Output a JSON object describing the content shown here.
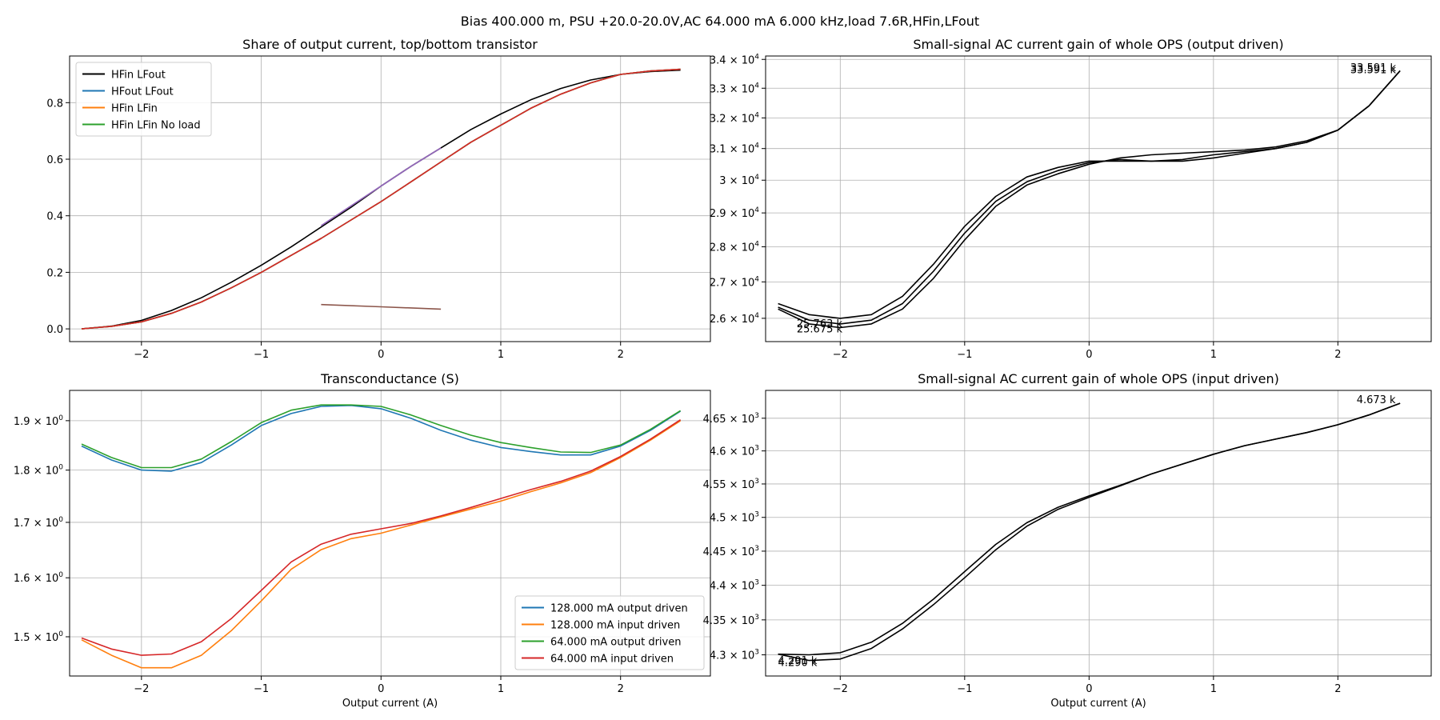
{
  "figure": {
    "suptitle": "Bias 400.000 m, PSU +20.0-20.0V,AC 64.000 mA 6.000 kHz,load 7.6R,HFin,LFout"
  },
  "chart_data": [
    {
      "id": "share",
      "type": "line",
      "title": "Share of output current, top/bottom transistor",
      "xlabel": "",
      "ylabel": "",
      "xlim": [
        -2.6,
        2.75
      ],
      "ylim": [
        -0.045,
        0.965
      ],
      "scale_y": "linear",
      "xticks": [
        -2,
        -1,
        0,
        1,
        2
      ],
      "xtick_labels": [
        "−2",
        "−1",
        "0",
        "1",
        "2"
      ],
      "yticks": [
        0.0,
        0.2,
        0.4,
        0.6,
        0.8
      ],
      "ytick_labels": [
        "0.0",
        "0.2",
        "0.4",
        "0.6",
        "0.8"
      ],
      "grid": true,
      "legend_position": "upper-left",
      "series": [
        {
          "name": "HFin LFout",
          "color": "#000000",
          "x": [
            -2.5,
            -2.25,
            -2,
            -1.75,
            -1.5,
            -1.25,
            -1,
            -0.75,
            -0.5,
            -0.25,
            0,
            0.25,
            0.5,
            0.75,
            1,
            1.25,
            1.5,
            1.75,
            2,
            2.25,
            2.5
          ],
          "y": [
            0.0,
            0.01,
            0.03,
            0.065,
            0.11,
            0.165,
            0.225,
            0.29,
            0.36,
            0.43,
            0.505,
            0.575,
            0.64,
            0.705,
            0.76,
            0.81,
            0.85,
            0.88,
            0.9,
            0.91,
            0.915
          ]
        },
        {
          "name": "HFout LFout",
          "color": "#1f77b4",
          "x": [
            -2.5,
            -2.25,
            -2,
            -1.75,
            -1.5,
            -1.25,
            -1,
            -0.75,
            -0.5,
            -0.25,
            0,
            0.25,
            0.5,
            0.75,
            1,
            1.25,
            1.5,
            1.75,
            2,
            2.25,
            2.5
          ],
          "y": [
            0.0,
            0.009,
            0.025,
            0.055,
            0.095,
            0.145,
            0.2,
            0.26,
            0.32,
            0.385,
            0.45,
            0.52,
            0.59,
            0.66,
            0.72,
            0.78,
            0.83,
            0.87,
            0.9,
            0.912,
            0.918
          ]
        },
        {
          "name": "HFin LFin",
          "color": "#ff7f0e",
          "x": [
            -2.5,
            -2.25,
            -2,
            -1.75,
            -1.5,
            -1.25,
            -1,
            -0.75,
            -0.5,
            -0.25,
            0,
            0.25,
            0.5,
            0.75,
            1,
            1.25,
            1.5,
            1.75,
            2,
            2.25,
            2.5
          ],
          "y": [
            0.0,
            0.009,
            0.025,
            0.055,
            0.095,
            0.145,
            0.2,
            0.26,
            0.32,
            0.385,
            0.45,
            0.52,
            0.59,
            0.66,
            0.72,
            0.78,
            0.83,
            0.87,
            0.9,
            0.912,
            0.918
          ]
        },
        {
          "name": "HFin LFin No load",
          "color": "#2ca02c",
          "x": [
            -2.5,
            -2.25,
            -2,
            -1.75,
            -1.5,
            -1.25,
            -1,
            -0.75,
            -0.5,
            -0.25,
            0,
            0.25,
            0.5,
            0.75,
            1,
            1.25,
            1.5,
            1.75,
            2,
            2.25,
            2.5
          ],
          "y": [
            0.0,
            0.009,
            0.025,
            0.055,
            0.095,
            0.145,
            0.2,
            0.26,
            0.32,
            0.385,
            0.45,
            0.52,
            0.59,
            0.66,
            0.72,
            0.78,
            0.83,
            0.87,
            0.9,
            0.912,
            0.918
          ]
        },
        {
          "color": "#d62728",
          "x": [
            -2.5,
            -2.25,
            -2,
            -1.75,
            -1.5,
            -1.25,
            -1,
            -0.75,
            -0.5,
            -0.25,
            0,
            0.25,
            0.5,
            0.75,
            1,
            1.25,
            1.5,
            1.75,
            2,
            2.25,
            2.5
          ],
          "y": [
            0.0,
            0.009,
            0.025,
            0.055,
            0.095,
            0.145,
            0.2,
            0.26,
            0.32,
            0.385,
            0.45,
            0.52,
            0.59,
            0.66,
            0.72,
            0.78,
            0.83,
            0.87,
            0.9,
            0.912,
            0.918
          ]
        },
        {
          "color": "#9467bd",
          "x": [
            -0.5,
            -0.25,
            0,
            0.25,
            0.5
          ],
          "y": [
            0.365,
            0.435,
            0.505,
            0.575,
            0.64
          ]
        },
        {
          "color": "#8c564b",
          "x": [
            -0.5,
            0,
            0.5
          ],
          "y": [
            0.086,
            0.078,
            0.07
          ]
        }
      ]
    },
    {
      "id": "gain_out",
      "type": "line",
      "title": "Small-signal AC current gain of whole OPS (output driven)",
      "xlabel": "",
      "ylabel": "",
      "xlim": [
        -2.6,
        2.75
      ],
      "ylim": [
        25380,
        34120
      ],
      "scale_y": "log",
      "xticks": [
        -2,
        -1,
        0,
        1,
        2
      ],
      "xtick_labels": [
        "−2",
        "−1",
        "0",
        "1",
        "2"
      ],
      "yticks": [
        26000,
        27000,
        28000,
        29000,
        30000,
        31000,
        32000,
        33000,
        34000
      ],
      "ytick_labels": [
        [
          "2.6 × 10",
          "4"
        ],
        [
          "2.7 × 10",
          "4"
        ],
        [
          "2.8 × 10",
          "4"
        ],
        [
          "2.9 × 10",
          "4"
        ],
        [
          "3 × 10",
          "4"
        ],
        [
          "3.1 × 10",
          "4"
        ],
        [
          "3.2 × 10",
          "4"
        ],
        [
          "3.3 × 10",
          "4"
        ],
        [
          "3.4 × 10",
          "4"
        ]
      ],
      "grid": true,
      "annotations": [
        {
          "text": "33.591 k",
          "x": 2.1,
          "y": 33591
        },
        {
          "text": "33.591 k",
          "x": 2.1,
          "y": 33520
        },
        {
          "text": "25.763 k",
          "x": -2.35,
          "y": 25763
        },
        {
          "text": "25.675 k",
          "x": -2.35,
          "y": 25620
        }
      ],
      "series": [
        {
          "color": "#000000",
          "x": [
            -2.5,
            -2.25,
            -2,
            -1.75,
            -1.5,
            -1.25,
            -1,
            -0.75,
            -0.5,
            -0.25,
            0,
            0.25,
            0.5,
            0.75,
            1,
            1.25,
            1.5,
            1.75,
            2,
            2.25,
            2.5
          ],
          "y": [
            26400,
            26100,
            26000,
            26100,
            26600,
            27500,
            28600,
            29500,
            30100,
            30400,
            30600,
            30600,
            30600,
            30650,
            30800,
            30900,
            31000,
            31200,
            31600,
            32400,
            33600
          ]
        },
        {
          "color": "#000000",
          "x": [
            -2.5,
            -2.25,
            -2,
            -1.75,
            -1.5,
            -1.25,
            -1,
            -0.75,
            -0.5,
            -0.25,
            0,
            0.25,
            0.5,
            0.75,
            1,
            1.25,
            1.5,
            1.75,
            2,
            2.25,
            2.5
          ],
          "y": [
            26300,
            25950,
            25850,
            25950,
            26400,
            27300,
            28400,
            29350,
            29950,
            30300,
            30550,
            30650,
            30600,
            30600,
            30700,
            30850,
            31000,
            31200,
            31600,
            32400,
            33600
          ]
        },
        {
          "color": "#000000",
          "x": [
            -2.5,
            -2.25,
            -2,
            -1.75,
            -1.5,
            -1.25,
            -1,
            -0.75,
            -0.5,
            -0.25,
            0,
            0.25,
            0.5,
            0.75,
            1,
            1.25,
            1.5,
            1.75,
            2,
            2.25,
            2.5
          ],
          "y": [
            26250,
            25850,
            25750,
            25850,
            26250,
            27100,
            28200,
            29200,
            29850,
            30200,
            30500,
            30700,
            30800,
            30850,
            30900,
            30950,
            31050,
            31250,
            31600,
            32400,
            33600
          ]
        }
      ]
    },
    {
      "id": "gm",
      "type": "line",
      "title": "Transconductance (S)",
      "xlabel": "Output current (A)",
      "ylabel": "",
      "xlim": [
        -2.6,
        2.75
      ],
      "ylim": [
        1.437,
        1.964
      ],
      "scale_y": "log",
      "xticks": [
        -2,
        -1,
        0,
        1,
        2
      ],
      "xtick_labels": [
        "−2",
        "−1",
        "0",
        "1",
        "2"
      ],
      "yticks": [
        1.5,
        1.6,
        1.7,
        1.8,
        1.9
      ],
      "ytick_labels": [
        [
          "1.5 × 10",
          "0"
        ],
        [
          "1.6 × 10",
          "0"
        ],
        [
          "1.7 × 10",
          "0"
        ],
        [
          "1.8 × 10",
          "0"
        ],
        [
          "1.9 × 10",
          "0"
        ]
      ],
      "grid": true,
      "legend_position": "lower-right",
      "series": [
        {
          "name": "128.000 mA output driven",
          "color": "#1f77b4",
          "x": [
            -2.5,
            -2.25,
            -2,
            -1.75,
            -1.5,
            -1.25,
            -1,
            -0.75,
            -0.5,
            -0.25,
            0,
            0.25,
            0.5,
            0.75,
            1,
            1.25,
            1.5,
            1.75,
            2,
            2.25,
            2.5
          ],
          "y": [
            1.848,
            1.82,
            1.8,
            1.798,
            1.815,
            1.85,
            1.89,
            1.915,
            1.93,
            1.932,
            1.925,
            1.905,
            1.88,
            1.86,
            1.845,
            1.837,
            1.83,
            1.83,
            1.848,
            1.88,
            1.92
          ]
        },
        {
          "name": "128.000 mA input driven",
          "color": "#ff7f0e",
          "x": [
            -2.5,
            -2.25,
            -2,
            -1.75,
            -1.5,
            -1.25,
            -1,
            -0.75,
            -0.5,
            -0.25,
            0,
            0.25,
            0.5,
            0.75,
            1,
            1.25,
            1.5,
            1.75,
            2,
            2.25,
            2.5
          ],
          "y": [
            1.495,
            1.47,
            1.45,
            1.45,
            1.47,
            1.51,
            1.56,
            1.615,
            1.65,
            1.67,
            1.68,
            1.695,
            1.71,
            1.725,
            1.74,
            1.758,
            1.775,
            1.795,
            1.825,
            1.86,
            1.9
          ]
        },
        {
          "name": "64.000 mA output driven",
          "color": "#2ca02c",
          "x": [
            -2.5,
            -2.25,
            -2,
            -1.75,
            -1.5,
            -1.25,
            -1,
            -0.75,
            -0.5,
            -0.25,
            0,
            0.25,
            0.5,
            0.75,
            1,
            1.25,
            1.5,
            1.75,
            2,
            2.25,
            2.5
          ],
          "y": [
            1.852,
            1.825,
            1.805,
            1.805,
            1.822,
            1.857,
            1.896,
            1.922,
            1.933,
            1.933,
            1.93,
            1.912,
            1.89,
            1.87,
            1.855,
            1.845,
            1.836,
            1.835,
            1.85,
            1.882,
            1.921
          ]
        },
        {
          "name": "64.000 mA input driven",
          "color": "#d62728",
          "x": [
            -2.5,
            -2.25,
            -2,
            -1.75,
            -1.5,
            -1.25,
            -1,
            -0.75,
            -0.5,
            -0.25,
            0,
            0.25,
            0.5,
            0.75,
            1,
            1.25,
            1.5,
            1.75,
            2,
            2.25,
            2.5
          ],
          "y": [
            1.498,
            1.48,
            1.47,
            1.472,
            1.492,
            1.53,
            1.578,
            1.628,
            1.66,
            1.678,
            1.688,
            1.698,
            1.712,
            1.728,
            1.745,
            1.762,
            1.778,
            1.798,
            1.827,
            1.862,
            1.902
          ]
        }
      ]
    },
    {
      "id": "gain_in",
      "type": "line",
      "title": "Small-signal AC current gain of whole OPS (input driven)",
      "xlabel": "Output current (A)",
      "ylabel": "",
      "xlim": [
        -2.6,
        2.75
      ],
      "ylim": [
        4270,
        4693
      ],
      "scale_y": "log",
      "xticks": [
        -2,
        -1,
        0,
        1,
        2
      ],
      "xtick_labels": [
        "−2",
        "−1",
        "0",
        "1",
        "2"
      ],
      "yticks": [
        4300,
        4350,
        4400,
        4450,
        4500,
        4550,
        4600,
        4650
      ],
      "ytick_labels": [
        [
          "4.3 × 10",
          "3"
        ],
        [
          "4.35 × 10",
          "3"
        ],
        [
          "4.4 × 10",
          "3"
        ],
        [
          "4.45 × 10",
          "3"
        ],
        [
          "4.5 × 10",
          "3"
        ],
        [
          "4.55 × 10",
          "3"
        ],
        [
          "4.6 × 10",
          "3"
        ],
        [
          "4.65 × 10",
          "3"
        ]
      ],
      "grid": true,
      "annotations": [
        {
          "text": "4.673 k",
          "x": 2.15,
          "y": 4673
        },
        {
          "text": "4.291 k",
          "x": -2.5,
          "y": 4287
        },
        {
          "text": "4.290 k",
          "x": -2.5,
          "y": 4284
        }
      ],
      "series": [
        {
          "color": "#000000",
          "x": [
            -2.5,
            -2.25,
            -2,
            -1.75,
            -1.5,
            -1.25,
            -1,
            -0.75,
            -0.5,
            -0.25,
            0,
            0.25,
            0.5,
            0.75,
            1,
            1.25,
            1.5,
            1.75,
            2,
            2.25,
            2.5
          ],
          "y": [
            4301,
            4300,
            4303,
            4318,
            4345,
            4380,
            4420,
            4460,
            4492,
            4515,
            4532,
            4548,
            4565,
            4580,
            4595,
            4608,
            4618,
            4628,
            4640,
            4655,
            4673
          ]
        },
        {
          "color": "#000000",
          "x": [
            -2.5,
            -2.25,
            -2,
            -1.75,
            -1.5,
            -1.25,
            -1,
            -0.75,
            -0.5,
            -0.25,
            0,
            0.25,
            0.5,
            0.75,
            1,
            1.25,
            1.5,
            1.75,
            2,
            2.25,
            2.5
          ],
          "y": [
            4301,
            4292,
            4294,
            4309,
            4337,
            4372,
            4411,
            4452,
            4487,
            4512,
            4530,
            4547,
            4565,
            4580,
            4595,
            4608,
            4618,
            4628,
            4640,
            4655,
            4673
          ]
        }
      ]
    }
  ]
}
